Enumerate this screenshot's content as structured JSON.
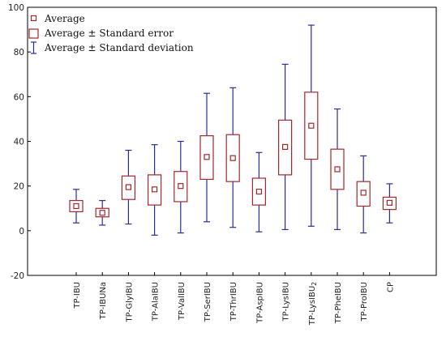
{
  "chart_data": {
    "type": "box",
    "title": "",
    "xlabel": "",
    "ylabel": "",
    "ylim": [
      -20,
      100
    ],
    "yticks": [
      -20,
      0,
      20,
      40,
      60,
      80,
      100
    ],
    "grid": false,
    "legend_position": "top-left",
    "legend": {
      "mean": "Average",
      "se": "Average ± Standard error",
      "sd": "Average ± Standard deviation"
    },
    "colors": {
      "mean_and_se": "#a3282b",
      "sd": "#2c2c9c"
    },
    "categories": [
      "TP-IBU",
      "TP-IBUNa",
      "TP-GlyIBU",
      "TP-AlaIBU",
      "TP-ValIBU",
      "TP-SerIBU",
      "TP-ThrIBU",
      "TP-AspIBU",
      "TP-LysIBU",
      "TP-LysIBU",
      "TP-PheIBU",
      "TP-ProIBU",
      "CP"
    ],
    "category_subscripts": [
      "",
      "",
      "",
      "",
      "",
      "",
      "",
      "",
      "",
      "2",
      "",
      "",
      ""
    ],
    "series": [
      {
        "category": "TP-IBU",
        "mean": 11,
        "se_low": 8.5,
        "se_high": 13.5,
        "sd_low": 3.5,
        "sd_high": 18.5
      },
      {
        "category": "TP-IBUNa",
        "mean": 8,
        "se_low": 6.2,
        "se_high": 10.0,
        "sd_low": 2.5,
        "sd_high": 13.5
      },
      {
        "category": "TP-GlyIBU",
        "mean": 19.5,
        "se_low": 14,
        "se_high": 24.5,
        "sd_low": 3,
        "sd_high": 36
      },
      {
        "category": "TP-AlaIBU",
        "mean": 18.5,
        "se_low": 11.5,
        "se_high": 25,
        "sd_low": -2,
        "sd_high": 38.5
      },
      {
        "category": "TP-ValIBU",
        "mean": 20,
        "se_low": 13,
        "se_high": 26.5,
        "sd_low": -1,
        "sd_high": 40
      },
      {
        "category": "TP-SerIBU",
        "mean": 33,
        "se_low": 23,
        "se_high": 42.5,
        "sd_low": 4,
        "sd_high": 61.5
      },
      {
        "category": "TP-ThrIBU",
        "mean": 32.5,
        "se_low": 22,
        "se_high": 43,
        "sd_low": 1.5,
        "sd_high": 64
      },
      {
        "category": "TP-AspIBU",
        "mean": 17.5,
        "se_low": 11.5,
        "se_high": 23.5,
        "sd_low": -0.5,
        "sd_high": 35
      },
      {
        "category": "TP-LysIBU",
        "mean": 37.5,
        "se_low": 25,
        "se_high": 49.5,
        "sd_low": 0.5,
        "sd_high": 74.5
      },
      {
        "category": "TP-LysIBU",
        "mean": 47,
        "se_low": 32,
        "se_high": 62,
        "sd_low": 2,
        "sd_high": 92
      },
      {
        "category": "TP-PheIBU",
        "mean": 27.5,
        "se_low": 18.5,
        "se_high": 36.5,
        "sd_low": 0.5,
        "sd_high": 54.5
      },
      {
        "category": "TP-ProIBU",
        "mean": 17,
        "se_low": 11,
        "se_high": 22,
        "sd_low": -1,
        "sd_high": 33.5
      },
      {
        "category": "CP",
        "mean": 12.5,
        "se_low": 9.5,
        "se_high": 15,
        "sd_low": 3.5,
        "sd_high": 21
      }
    ]
  }
}
